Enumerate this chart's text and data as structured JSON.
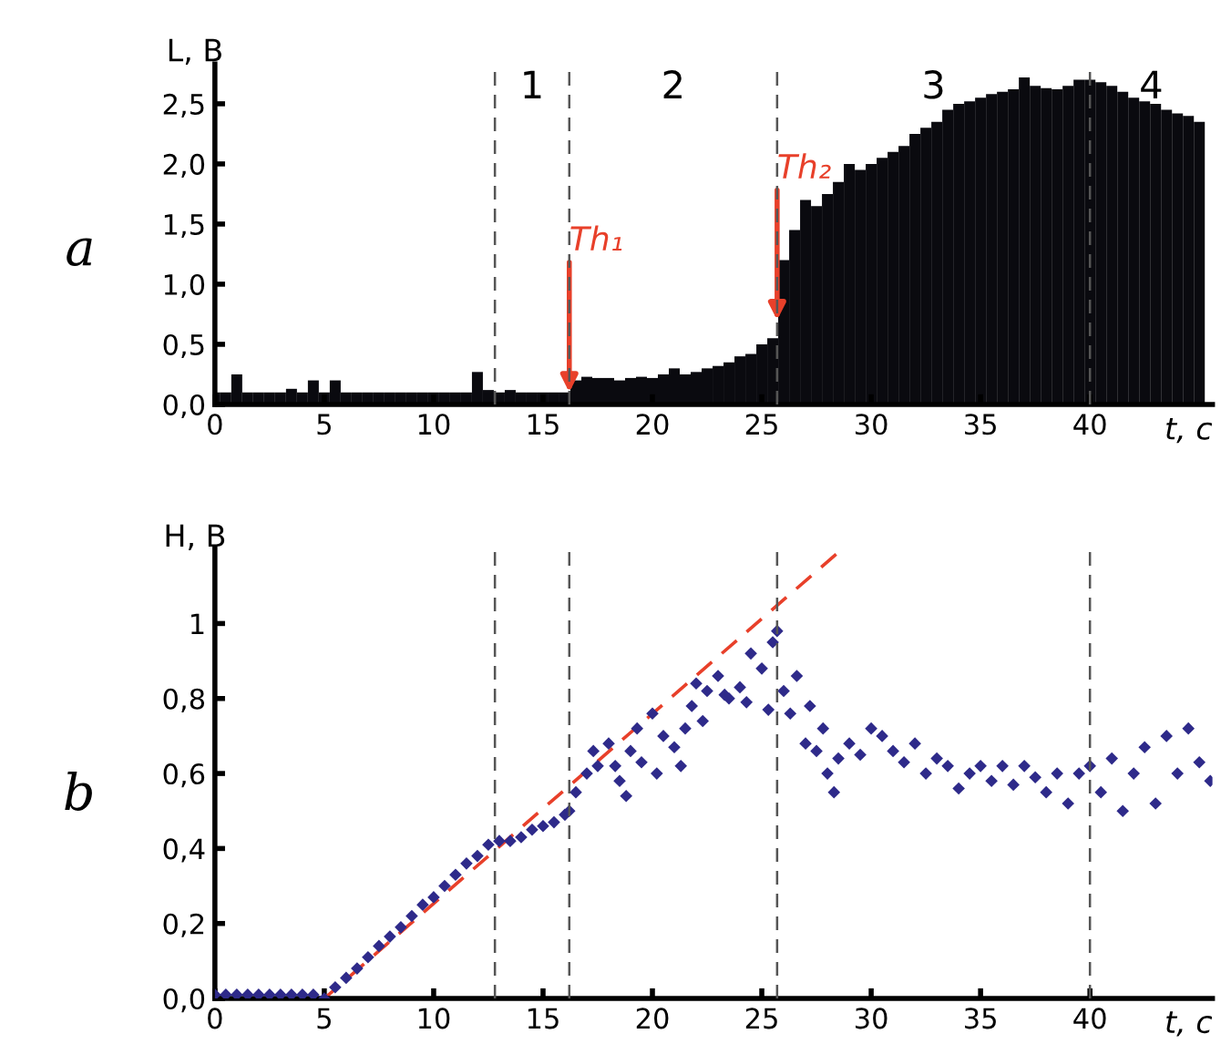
{
  "chart_data": [
    {
      "type": "bar",
      "xlabel": "t, с",
      "ylabel": "L, В",
      "xlim": [
        0,
        45.6
      ],
      "xticks": [
        0,
        5,
        10,
        15,
        20,
        25,
        30,
        35,
        40
      ],
      "ylim": [
        0,
        2.83
      ],
      "yticks": [
        {
          "value": 0,
          "label": "0,0"
        },
        {
          "value": 0.5,
          "label": "0,5"
        },
        {
          "value": 1,
          "label": "1,0"
        },
        {
          "value": 1.5,
          "label": "1,5"
        },
        {
          "value": 2,
          "label": "2,0"
        },
        {
          "value": 2.5,
          "label": "2,5"
        }
      ],
      "grid": false,
      "legend": false,
      "series": [
        {
          "color": "#0a0a0f",
          "x": [
            0,
            0.5,
            1,
            1.5,
            2,
            2.5,
            3,
            3.5,
            4,
            4.5,
            5,
            5.5,
            6,
            6.5,
            7,
            7.5,
            8,
            8.5,
            9,
            9.5,
            10,
            10.5,
            11,
            11.5,
            12,
            12.5,
            13,
            13.5,
            14,
            14.5,
            15,
            15.5,
            16,
            16.5,
            17,
            17.5,
            18,
            18.5,
            19,
            19.5,
            20,
            20.5,
            21,
            21.5,
            22,
            22.5,
            23,
            23.5,
            24,
            24.5,
            25,
            25.5,
            26,
            26.5,
            27,
            27.5,
            28,
            28.5,
            29,
            29.5,
            30,
            30.5,
            31,
            31.5,
            32,
            32.5,
            33,
            33.5,
            34,
            34.5,
            35,
            35.5,
            36,
            36.5,
            37,
            37.5,
            38,
            38.5,
            39,
            39.5,
            40,
            40.5,
            41,
            41.5,
            42,
            42.5,
            43,
            43.5,
            44,
            44.5,
            45
          ],
          "values": [
            0.1,
            0.1,
            0.25,
            0.1,
            0.1,
            0.1,
            0.1,
            0.13,
            0.1,
            0.2,
            0.1,
            0.2,
            0.1,
            0.1,
            0.1,
            0.1,
            0.1,
            0.1,
            0.1,
            0.1,
            0.1,
            0.1,
            0.1,
            0.1,
            0.27,
            0.12,
            0.1,
            0.12,
            0.1,
            0.1,
            0.1,
            0.1,
            0.1,
            0.2,
            0.23,
            0.22,
            0.22,
            0.2,
            0.22,
            0.23,
            0.22,
            0.25,
            0.3,
            0.25,
            0.27,
            0.3,
            0.32,
            0.35,
            0.4,
            0.42,
            0.5,
            0.55,
            1.2,
            1.45,
            1.7,
            1.65,
            1.75,
            1.85,
            2.0,
            1.95,
            2.0,
            2.05,
            2.1,
            2.15,
            2.25,
            2.3,
            2.35,
            2.45,
            2.5,
            2.52,
            2.55,
            2.58,
            2.6,
            2.62,
            2.72,
            2.65,
            2.63,
            2.62,
            2.65,
            2.7,
            2.7,
            2.68,
            2.65,
            2.6,
            2.55,
            2.52,
            2.5,
            2.45,
            2.42,
            2.4,
            2.35
          ]
        }
      ],
      "ref_lines": [
        {
          "axis": "x",
          "value": 12.8,
          "color": "#555555",
          "line_style": "dashed"
        },
        {
          "axis": "x",
          "value": 16.2,
          "color": "#555555",
          "line_style": "dashed"
        },
        {
          "axis": "x",
          "value": 25.7,
          "color": "#555555",
          "line_style": "dashed"
        },
        {
          "axis": "x",
          "value": 40,
          "color": "#555555",
          "line_style": "dashed"
        }
      ],
      "annotations": [
        "a",
        "1",
        "2",
        "3",
        "4",
        {
          "text": "Th₁",
          "x": 16.2,
          "y": 0.1
        },
        {
          "text": "Th₂",
          "x": 25.7,
          "y": 0.7
        }
      ]
    },
    {
      "type": "scatter",
      "xlabel": "t, с",
      "ylabel": "H, В",
      "xlim": [
        0,
        45.6
      ],
      "xticks": [
        0,
        5,
        10,
        15,
        20,
        25,
        30,
        35,
        40
      ],
      "ylim": [
        0,
        1.2
      ],
      "yticks": [
        {
          "value": 0,
          "label": "0,0"
        },
        {
          "value": 0.2,
          "label": "0,2"
        },
        {
          "value": 0.4,
          "label": "0,4"
        },
        {
          "value": 0.6,
          "label": "0,6"
        },
        {
          "value": 0.8,
          "label": "0,8"
        },
        1
      ],
      "grid": false,
      "legend": false,
      "marker": "diamond",
      "series": [
        {
          "color": "#2e2a8a",
          "x": [
            0,
            0.5,
            1,
            1.5,
            2,
            2.5,
            3,
            3.5,
            4,
            4.5,
            5,
            5.5,
            6,
            6.5,
            7,
            7.5,
            8,
            8.5,
            9,
            9.5,
            10,
            10.5,
            11,
            11.5,
            12,
            12.5,
            13,
            13.5,
            14,
            14.5,
            15,
            15.5,
            16,
            16.2,
            16.5,
            17,
            17.3,
            17.5,
            18,
            18.3,
            18.5,
            18.8,
            19,
            19.3,
            19.5,
            20,
            20.2,
            20.5,
            21,
            21.3,
            21.5,
            21.8,
            22,
            22.3,
            22.5,
            23,
            23.3,
            23.5,
            24,
            24.3,
            24.5,
            25,
            25.3,
            25.5,
            25.7,
            26,
            26.3,
            26.6,
            27,
            27.2,
            27.5,
            27.8,
            28,
            28.3,
            28.5,
            29,
            29.5,
            30,
            30.5,
            31,
            31.5,
            32,
            32.5,
            33,
            33.5,
            34,
            34.5,
            35,
            35.5,
            36,
            36.5,
            37,
            37.5,
            38,
            38.5,
            39,
            39.5,
            40,
            40.5,
            41,
            41.5,
            42,
            42.5,
            43,
            43.5,
            44,
            44.5,
            45,
            45.5
          ],
          "values": [
            0.01,
            0.01,
            0.01,
            0.01,
            0.01,
            0.01,
            0.01,
            0.01,
            0.01,
            0.01,
            0.0,
            0.03,
            0.055,
            0.08,
            0.11,
            0.14,
            0.165,
            0.19,
            0.22,
            0.25,
            0.27,
            0.3,
            0.33,
            0.36,
            0.38,
            0.41,
            0.42,
            0.42,
            0.43,
            0.45,
            0.46,
            0.47,
            0.49,
            0.5,
            0.55,
            0.6,
            0.66,
            0.62,
            0.68,
            0.62,
            0.58,
            0.54,
            0.66,
            0.72,
            0.63,
            0.76,
            0.6,
            0.7,
            0.67,
            0.62,
            0.72,
            0.78,
            0.84,
            0.74,
            0.82,
            0.86,
            0.81,
            0.8,
            0.83,
            0.79,
            0.92,
            0.88,
            0.77,
            0.95,
            0.98,
            0.82,
            0.76,
            0.86,
            0.68,
            0.78,
            0.66,
            0.72,
            0.6,
            0.55,
            0.64,
            0.68,
            0.65,
            0.72,
            0.7,
            0.66,
            0.63,
            0.68,
            0.6,
            0.64,
            0.62,
            0.56,
            0.6,
            0.62,
            0.58,
            0.62,
            0.57,
            0.62,
            0.59,
            0.55,
            0.6,
            0.52,
            0.6,
            0.62,
            0.55,
            0.64,
            0.5,
            0.6,
            0.67,
            0.52,
            0.7,
            0.6,
            0.72,
            0.63,
            0.58
          ]
        },
        {
          "type": "line",
          "color": "#e8402a",
          "line_style": "dashed",
          "marker": "none",
          "x": [
            5,
            28.5
          ],
          "values": [
            0,
            1.19
          ]
        }
      ],
      "ref_lines": [
        {
          "axis": "x",
          "value": 12.8,
          "color": "#555555",
          "line_style": "dashed"
        },
        {
          "axis": "x",
          "value": 16.2,
          "color": "#555555",
          "line_style": "dashed"
        },
        {
          "axis": "x",
          "value": 25.7,
          "color": "#555555",
          "line_style": "dashed"
        },
        {
          "axis": "x",
          "value": 40,
          "color": "#555555",
          "line_style": "dashed"
        }
      ],
      "annotations": [
        "b"
      ]
    }
  ]
}
